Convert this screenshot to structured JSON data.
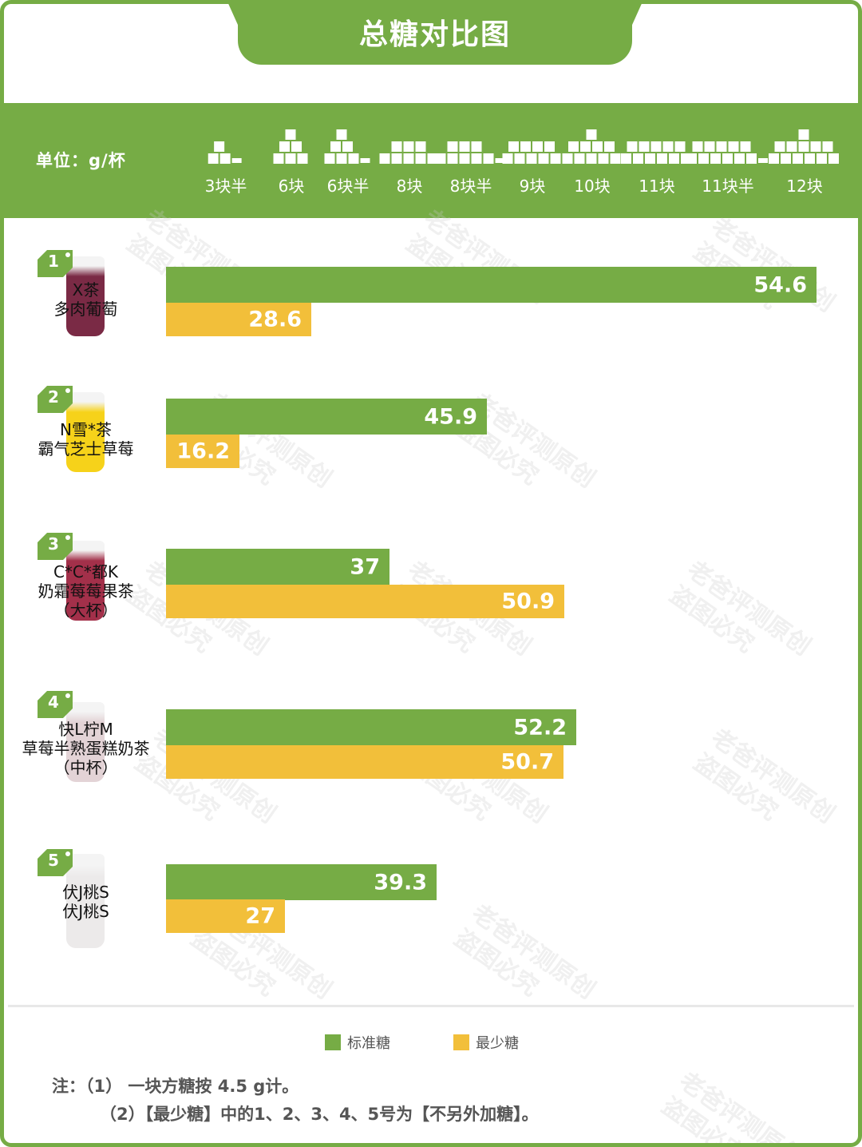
{
  "header": {
    "title": "总糖对比图"
  },
  "scale": {
    "unit_label": "单位：g/杯",
    "items": [
      {
        "label": "3块半",
        "cubes": 3.5
      },
      {
        "label": "6块",
        "cubes": 6
      },
      {
        "label": "6块半",
        "cubes": 6.5
      },
      {
        "label": "8块",
        "cubes": 8
      },
      {
        "label": "8块半",
        "cubes": 8.5
      },
      {
        "label": "9块",
        "cubes": 9
      },
      {
        "label": "10块",
        "cubes": 10
      },
      {
        "label": "11块",
        "cubes": 11
      },
      {
        "label": "11块半",
        "cubes": 11.5
      },
      {
        "label": "12块",
        "cubes": 12
      }
    ]
  },
  "products": [
    {
      "rank": "1",
      "name_line1": "X茶",
      "name_line2": "多肉葡萄",
      "name_line3": "",
      "standard": "54.6",
      "least": "28.6",
      "cup_color": "#7a2a45"
    },
    {
      "rank": "2",
      "name_line1": "N雪*茶",
      "name_line2": "霸气芝士草莓",
      "name_line3": "",
      "standard": "45.9",
      "least": "16.2",
      "cup_color": "#f6d21a"
    },
    {
      "rank": "3",
      "name_line1": "C*C*都K",
      "name_line2": "奶霜莓莓果茶",
      "name_line3": "（大杯）",
      "standard": "37",
      "least": "50.9",
      "cup_color": "#a3304a"
    },
    {
      "rank": "4",
      "name_line1": "快L柠M",
      "name_line2": "草莓半熟蛋糕奶茶",
      "name_line3": "（中杯）",
      "standard": "52.2",
      "least": "50.7",
      "cup_color": "#e3d3d6"
    },
    {
      "rank": "5",
      "name_line1": "伏J桃S",
      "name_line2": "伏J桃S",
      "name_line3": "",
      "standard": "39.3",
      "least": "27",
      "cup_color": "#eceaea"
    }
  ],
  "legend": {
    "standard_label": "标准糖",
    "least_label": "最少糖",
    "standard_color": "#76ac45",
    "least_color": "#f2bf3a"
  },
  "notes": {
    "prefix": "注：",
    "line1": "（1） 一块方糖按 4.5 g计。",
    "line2": "（2）【最少糖】中的1、2、3、4、5号为【不另外加糖】。"
  },
  "watermark": {
    "line1": "老爸评测原创",
    "line2": "盗图必究"
  },
  "chart_data": {
    "type": "bar",
    "orientation": "horizontal",
    "title": "总糖对比图",
    "unit": "g/杯",
    "categories": [
      "X茶 多肉葡萄",
      "N雪*茶 霸气芝士草莓",
      "C*C*都K 奶霜莓莓果茶（大杯）",
      "快L柠M 草莓半熟蛋糕奶茶（中杯）",
      "伏J桃S 伏J桃S"
    ],
    "series": [
      {
        "name": "标准糖",
        "color": "#76ac45",
        "values": [
          54.6,
          45.9,
          37,
          52.2,
          39.3
        ]
      },
      {
        "name": "最少糖",
        "color": "#f2bf3a",
        "values": [
          28.6,
          16.2,
          50.9,
          50.7,
          27
        ]
      }
    ],
    "scale_reference": [
      "3块半",
      "6块",
      "6块半",
      "8块",
      "8块半",
      "9块",
      "10块",
      "11块",
      "11块半",
      "12块"
    ],
    "legend_position": "bottom",
    "grid": false,
    "notes": [
      "（1） 一块方糖按 4.5 g计。",
      "（2）【最少糖】中的1、2、3、4、5号为【不另外加糖】。"
    ]
  }
}
